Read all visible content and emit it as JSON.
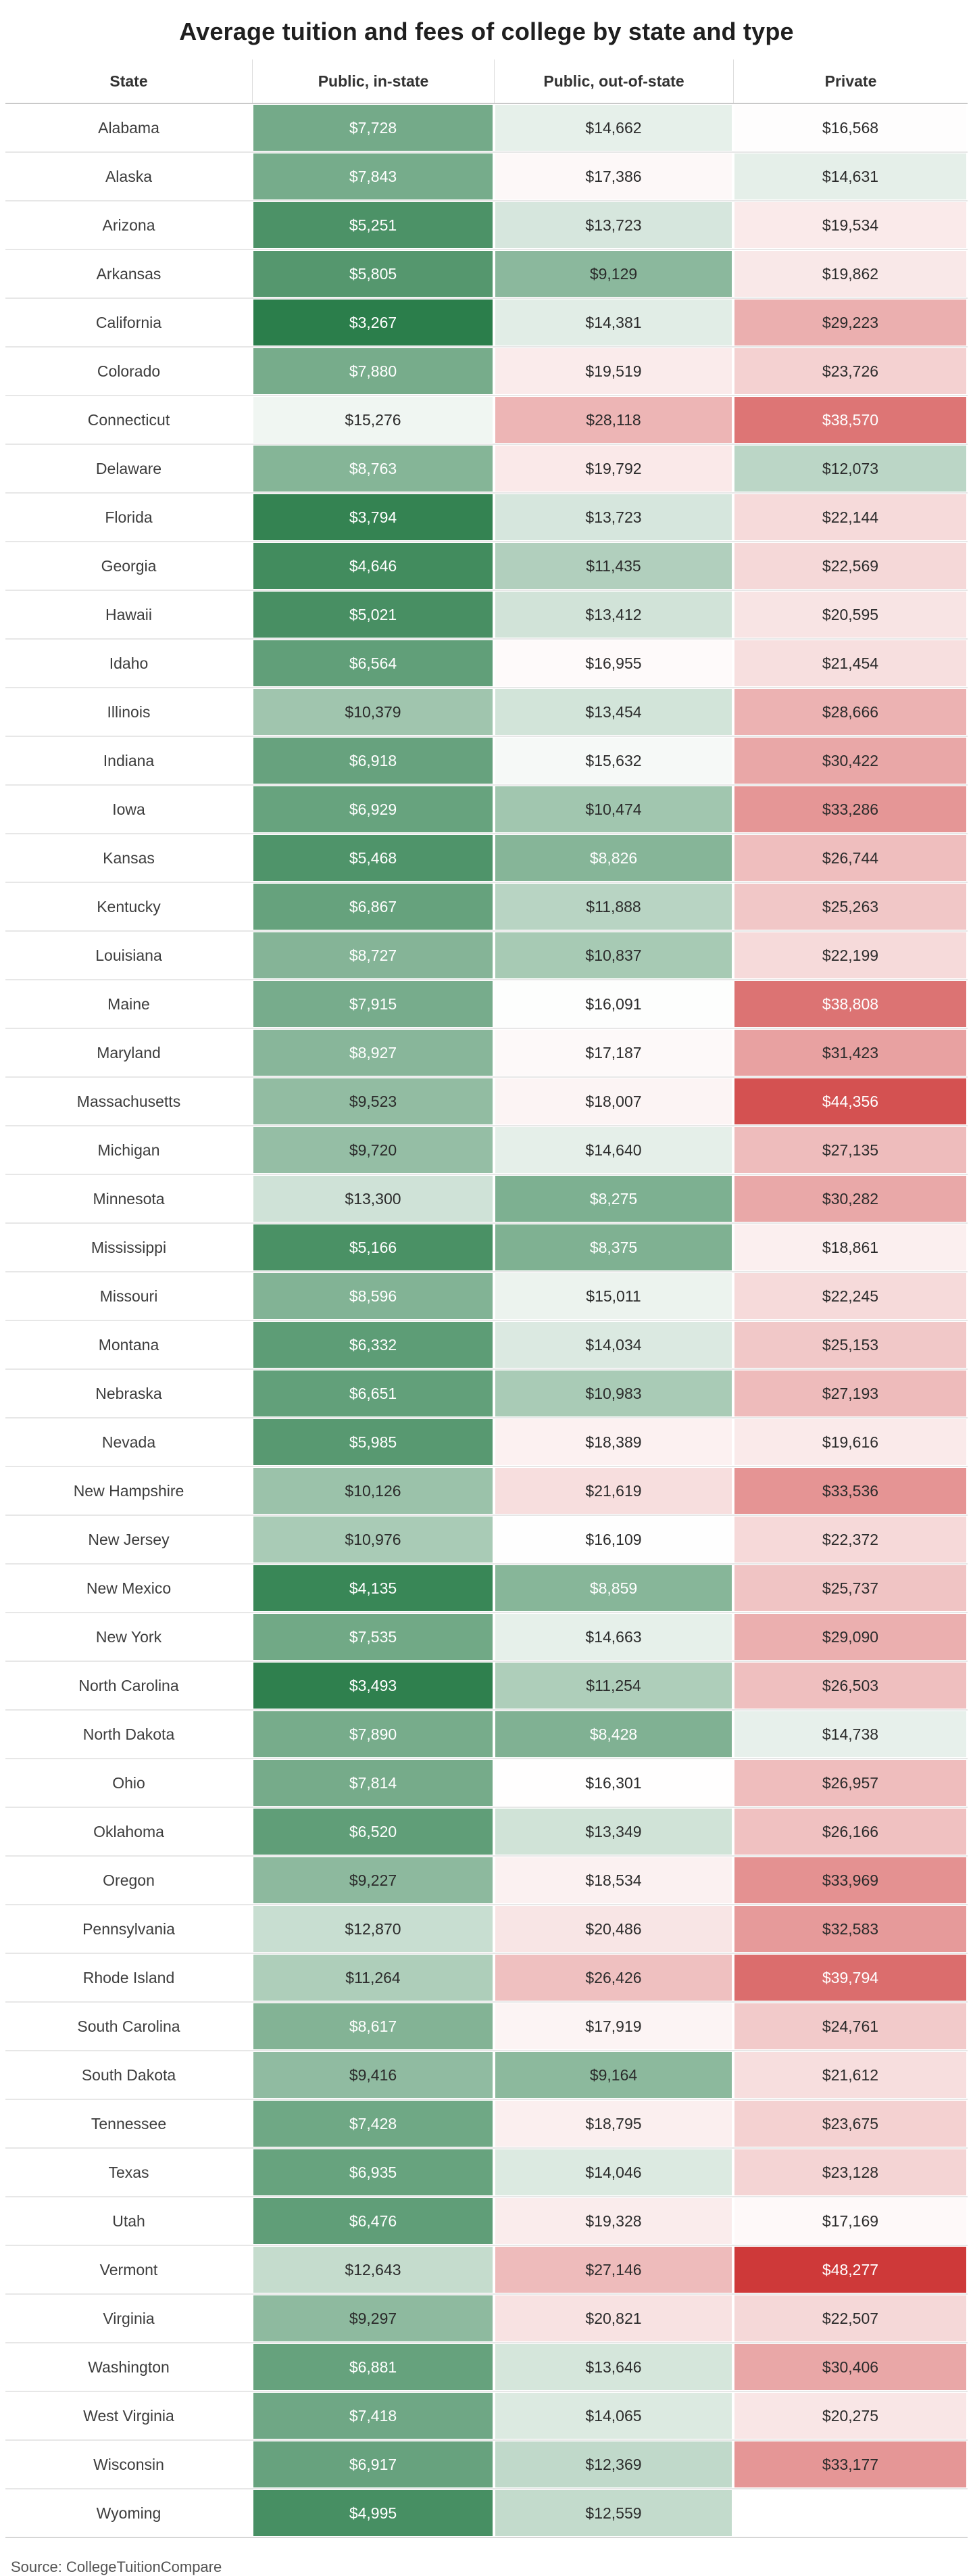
{
  "title": "Average tuition and fees of college by state and type",
  "source_note": "Source: CollegeTuitionCompare",
  "chart_data": {
    "type": "heatmap",
    "title": "Average tuition and fees of college by state and type",
    "columns": [
      "State",
      "Public, in-state",
      "Public, out-of-state",
      "Private"
    ],
    "value_format": "usd",
    "color_scale": {
      "description": "diverging green-white-red",
      "min_value": 3267,
      "center_value": 16200,
      "max_value": 48277,
      "green_color": "#2b7e4b",
      "white_color": "#ffffff",
      "red_color": "#ce3939"
    },
    "rows": [
      {
        "state": "Alabama",
        "public_in_state": 7728,
        "public_out_of_state": 14662,
        "private": 16568
      },
      {
        "state": "Alaska",
        "public_in_state": 7843,
        "public_out_of_state": 17386,
        "private": 14631
      },
      {
        "state": "Arizona",
        "public_in_state": 5251,
        "public_out_of_state": 13723,
        "private": 19534
      },
      {
        "state": "Arkansas",
        "public_in_state": 5805,
        "public_out_of_state": 9129,
        "private": 19862
      },
      {
        "state": "California",
        "public_in_state": 3267,
        "public_out_of_state": 14381,
        "private": 29223
      },
      {
        "state": "Colorado",
        "public_in_state": 7880,
        "public_out_of_state": 19519,
        "private": 23726
      },
      {
        "state": "Connecticut",
        "public_in_state": 15276,
        "public_out_of_state": 28118,
        "private": 38570
      },
      {
        "state": "Delaware",
        "public_in_state": 8763,
        "public_out_of_state": 19792,
        "private": 12073
      },
      {
        "state": "Florida",
        "public_in_state": 3794,
        "public_out_of_state": 13723,
        "private": 22144
      },
      {
        "state": "Georgia",
        "public_in_state": 4646,
        "public_out_of_state": 11435,
        "private": 22569
      },
      {
        "state": "Hawaii",
        "public_in_state": 5021,
        "public_out_of_state": 13412,
        "private": 20595
      },
      {
        "state": "Idaho",
        "public_in_state": 6564,
        "public_out_of_state": 16955,
        "private": 21454
      },
      {
        "state": "Illinois",
        "public_in_state": 10379,
        "public_out_of_state": 13454,
        "private": 28666
      },
      {
        "state": "Indiana",
        "public_in_state": 6918,
        "public_out_of_state": 15632,
        "private": 30422
      },
      {
        "state": "Iowa",
        "public_in_state": 6929,
        "public_out_of_state": 10474,
        "private": 33286
      },
      {
        "state": "Kansas",
        "public_in_state": 5468,
        "public_out_of_state": 8826,
        "private": 26744
      },
      {
        "state": "Kentucky",
        "public_in_state": 6867,
        "public_out_of_state": 11888,
        "private": 25263
      },
      {
        "state": "Louisiana",
        "public_in_state": 8727,
        "public_out_of_state": 10837,
        "private": 22199
      },
      {
        "state": "Maine",
        "public_in_state": 7915,
        "public_out_of_state": 16091,
        "private": 38808
      },
      {
        "state": "Maryland",
        "public_in_state": 8927,
        "public_out_of_state": 17187,
        "private": 31423
      },
      {
        "state": "Massachusetts",
        "public_in_state": 9523,
        "public_out_of_state": 18007,
        "private": 44356
      },
      {
        "state": "Michigan",
        "public_in_state": 9720,
        "public_out_of_state": 14640,
        "private": 27135
      },
      {
        "state": "Minnesota",
        "public_in_state": 13300,
        "public_out_of_state": 8275,
        "private": 30282
      },
      {
        "state": "Mississippi",
        "public_in_state": 5166,
        "public_out_of_state": 8375,
        "private": 18861
      },
      {
        "state": "Missouri",
        "public_in_state": 8596,
        "public_out_of_state": 15011,
        "private": 22245
      },
      {
        "state": "Montana",
        "public_in_state": 6332,
        "public_out_of_state": 14034,
        "private": 25153
      },
      {
        "state": "Nebraska",
        "public_in_state": 6651,
        "public_out_of_state": 10983,
        "private": 27193
      },
      {
        "state": "Nevada",
        "public_in_state": 5985,
        "public_out_of_state": 18389,
        "private": 19616
      },
      {
        "state": "New Hampshire",
        "public_in_state": 10126,
        "public_out_of_state": 21619,
        "private": 33536
      },
      {
        "state": "New Jersey",
        "public_in_state": 10976,
        "public_out_of_state": 16109,
        "private": 22372
      },
      {
        "state": "New Mexico",
        "public_in_state": 4135,
        "public_out_of_state": 8859,
        "private": 25737
      },
      {
        "state": "New York",
        "public_in_state": 7535,
        "public_out_of_state": 14663,
        "private": 29090
      },
      {
        "state": "North Carolina",
        "public_in_state": 3493,
        "public_out_of_state": 11254,
        "private": 26503
      },
      {
        "state": "North Dakota",
        "public_in_state": 7890,
        "public_out_of_state": 8428,
        "private": 14738
      },
      {
        "state": "Ohio",
        "public_in_state": 7814,
        "public_out_of_state": 16301,
        "private": 26957
      },
      {
        "state": "Oklahoma",
        "public_in_state": 6520,
        "public_out_of_state": 13349,
        "private": 26166
      },
      {
        "state": "Oregon",
        "public_in_state": 9227,
        "public_out_of_state": 18534,
        "private": 33969
      },
      {
        "state": "Pennsylvania",
        "public_in_state": 12870,
        "public_out_of_state": 20486,
        "private": 32583
      },
      {
        "state": "Rhode Island",
        "public_in_state": 11264,
        "public_out_of_state": 26426,
        "private": 39794
      },
      {
        "state": "South Carolina",
        "public_in_state": 8617,
        "public_out_of_state": 17919,
        "private": 24761
      },
      {
        "state": "South Dakota",
        "public_in_state": 9416,
        "public_out_of_state": 9164,
        "private": 21612
      },
      {
        "state": "Tennessee",
        "public_in_state": 7428,
        "public_out_of_state": 18795,
        "private": 23675
      },
      {
        "state": "Texas",
        "public_in_state": 6935,
        "public_out_of_state": 14046,
        "private": 23128
      },
      {
        "state": "Utah",
        "public_in_state": 6476,
        "public_out_of_state": 19328,
        "private": 17169
      },
      {
        "state": "Vermont",
        "public_in_state": 12643,
        "public_out_of_state": 27146,
        "private": 48277
      },
      {
        "state": "Virginia",
        "public_in_state": 9297,
        "public_out_of_state": 20821,
        "private": 22507
      },
      {
        "state": "Washington",
        "public_in_state": 6881,
        "public_out_of_state": 13646,
        "private": 30406
      },
      {
        "state": "West Virginia",
        "public_in_state": 7418,
        "public_out_of_state": 14065,
        "private": 20275
      },
      {
        "state": "Wisconsin",
        "public_in_state": 6917,
        "public_out_of_state": 12369,
        "private": 33177
      },
      {
        "state": "Wyoming",
        "public_in_state": 4995,
        "public_out_of_state": 12559,
        "private": null
      }
    ]
  }
}
